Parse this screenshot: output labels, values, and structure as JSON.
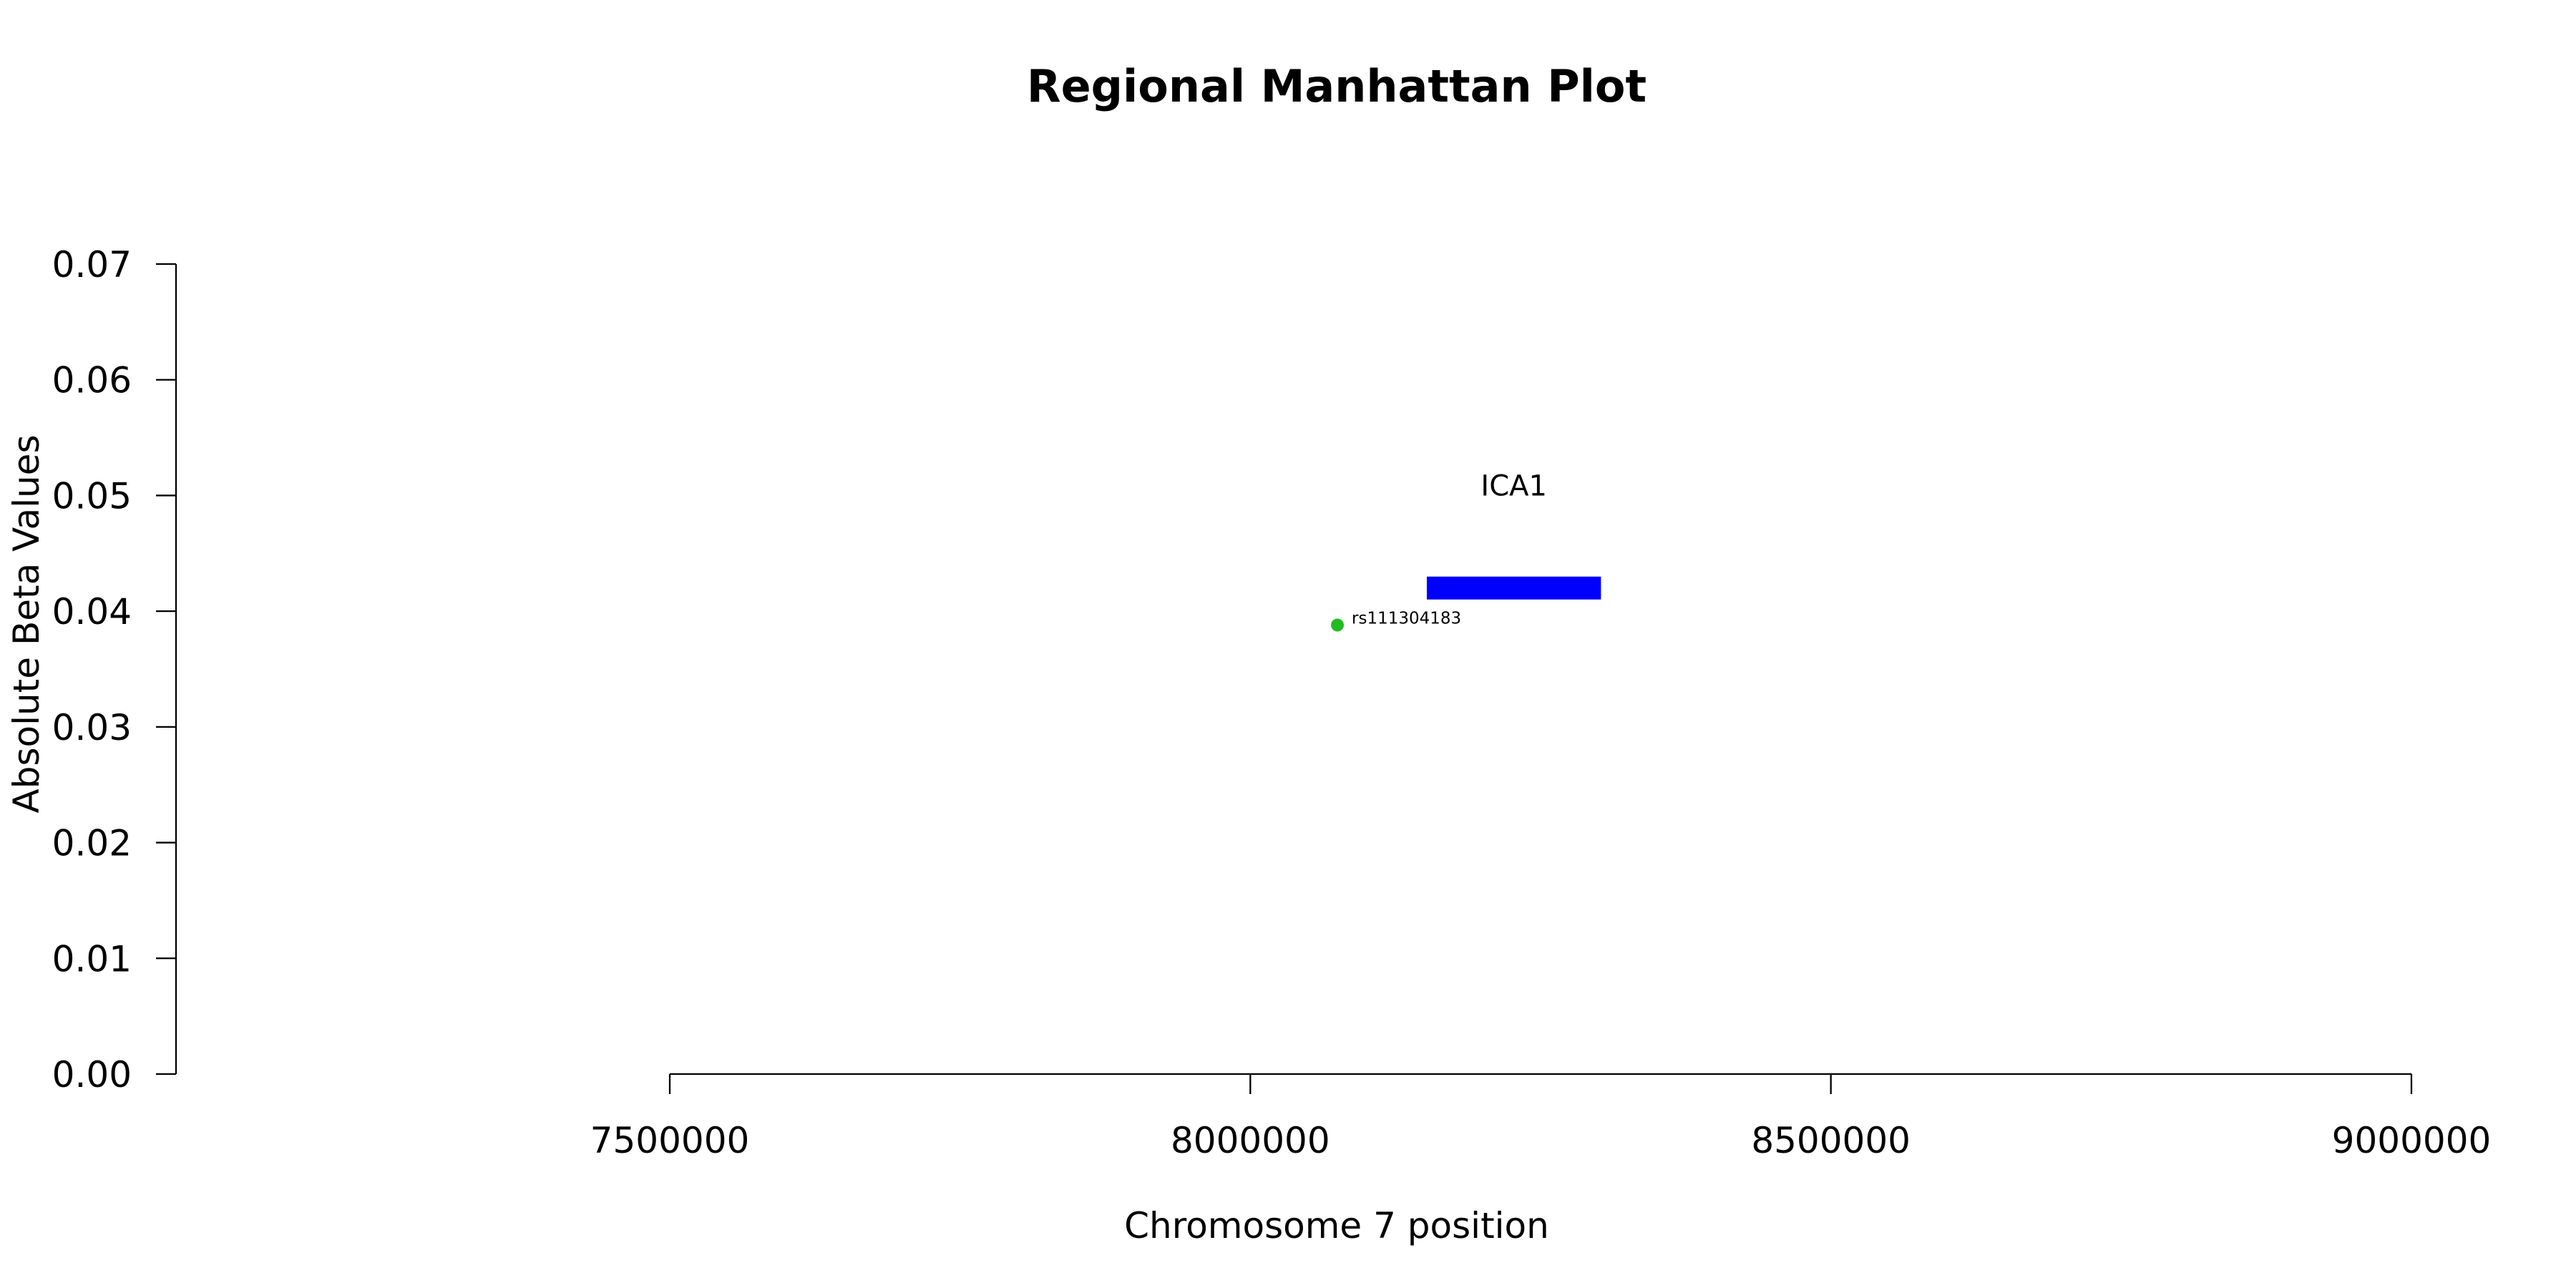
{
  "chart_data": {
    "type": "scatter",
    "title": "Regional Manhattan Plot",
    "xlabel": "Chromosome 7 position",
    "ylabel": "Absolute Beta Values",
    "xlim": [
      7500000,
      9000000
    ],
    "ylim": [
      0,
      0.07
    ],
    "x_ticks": [
      7500000,
      8000000,
      8500000,
      9000000
    ],
    "x_tick_labels": [
      "7500000",
      "8000000",
      "8500000",
      "9000000"
    ],
    "y_ticks": [
      0,
      0.01,
      0.02,
      0.03,
      0.04,
      0.05,
      0.06,
      0.07
    ],
    "y_tick_labels": [
      "0.00",
      "0.01",
      "0.02",
      "0.03",
      "0.04",
      "0.05",
      "0.06",
      "0.07"
    ],
    "grid": false,
    "points": [
      {
        "label": "rs111304183",
        "x": 8075000,
        "y": 0.0388,
        "color": "#22BB22"
      }
    ],
    "genes": [
      {
        "name": "ICA1",
        "start": 8152000,
        "end": 8302000,
        "y": 0.042,
        "color": "#0000FF"
      }
    ]
  }
}
